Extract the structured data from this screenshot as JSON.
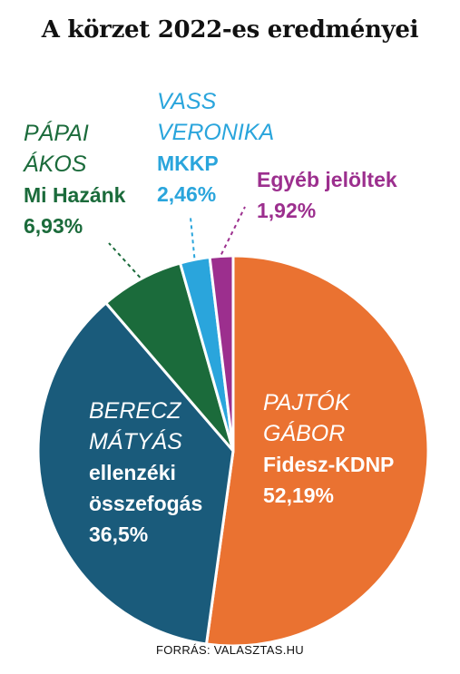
{
  "title": "A körzet 2022-es eredményei",
  "source": "FORRÁS: VALASZTAS.HU",
  "chart_data": {
    "type": "pie",
    "title": "A körzet 2022-es eredményei",
    "slices": [
      {
        "candidate": [
          "PAJTÓK",
          "GÁBOR"
        ],
        "party": "Fidesz-KDNP",
        "value": 52.19,
        "label": "52,19%",
        "color": "#ea7231",
        "text_color": "#ffffff"
      },
      {
        "candidate": [
          "BERECZ",
          "MÁTYÁS"
        ],
        "party": "ellenzéki\nösszefogás",
        "party_lines": [
          "ellenzéki",
          "összefogás"
        ],
        "value": 36.5,
        "label": "36,5%",
        "color": "#1a5b7b",
        "text_color": "#ffffff"
      },
      {
        "candidate": [
          "PÁPAI",
          "ÁKOS"
        ],
        "party": "Mi Hazánk",
        "value": 6.93,
        "label": "6,93%",
        "color": "#1b6b3b",
        "text_color": "#1b6b3b"
      },
      {
        "candidate": [
          "VASS",
          "VERONIKA"
        ],
        "party": "MKKP",
        "value": 2.46,
        "label": "2,46%",
        "color": "#2aa5dc",
        "text_color": "#2aa5dc"
      },
      {
        "candidate": [],
        "party": "Egyéb jelöltek",
        "value": 1.92,
        "label": "1,92%",
        "color": "#9c2f8e",
        "text_color": "#9c2f8e"
      }
    ],
    "start_angle": "12 o'clock",
    "direction": "clockwise",
    "legend": "none"
  }
}
